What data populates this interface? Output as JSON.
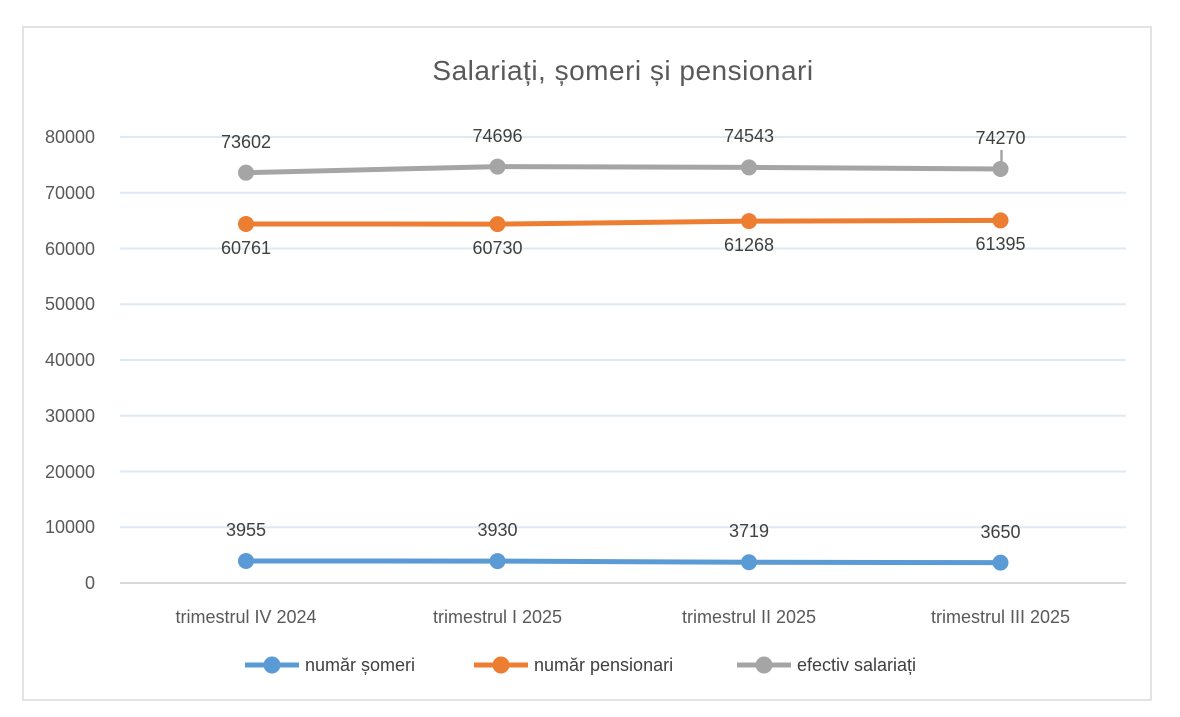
{
  "chart_data": {
    "type": "line",
    "title": "Salariați, șomeri și pensionari",
    "categories": [
      "trimestrul IV 2024",
      "trimestrul I 2025",
      "trimestrul II 2025",
      "trimestrul III 2025"
    ],
    "series": [
      {
        "name": "număr șomeri",
        "color": "#5B9BD5",
        "values": [
          3955,
          3930,
          3719,
          3650
        ],
        "label_position": "above"
      },
      {
        "name": "număr pensionari",
        "color": "#ED7D31",
        "values": [
          60761,
          60730,
          61268,
          61395
        ],
        "label_position": "below"
      },
      {
        "name": "efectiv salariați",
        "color": "#A5A5A5",
        "values": [
          73602,
          74696,
          74543,
          74270
        ],
        "label_position": "above"
      }
    ],
    "yticks": [
      0,
      10000,
      20000,
      30000,
      40000,
      50000,
      60000,
      70000,
      80000
    ],
    "ylim": [
      0,
      80000
    ],
    "grid": true,
    "legend_position": "bottom",
    "marker": "circle",
    "colors": {
      "gridline": "#DEE9F6",
      "axis_line": "#D9D9D9",
      "title_text": "#595959",
      "tick_text": "#595959",
      "data_label_text": "#404040",
      "legend_text": "#404040",
      "frame_border": "#E3E3E3"
    }
  }
}
